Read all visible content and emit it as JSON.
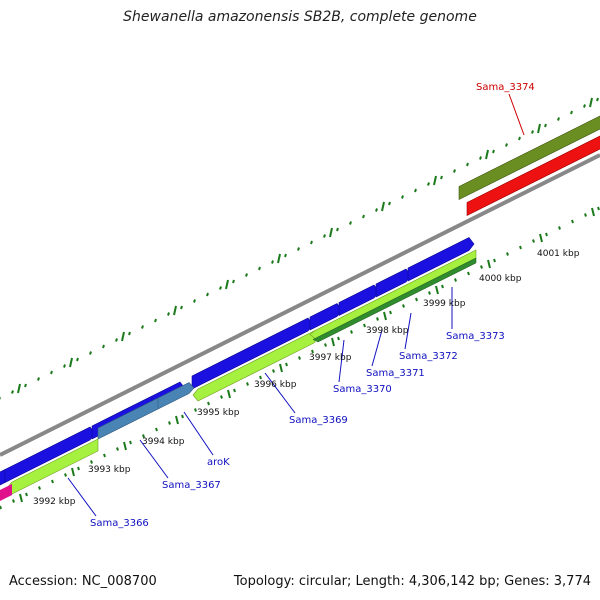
{
  "header": {
    "title": "Shewanella amazonensis SB2B, complete genome"
  },
  "footer": {
    "accession": "Accession: NC_008700",
    "summary": "Topology: circular; Length: 4,306,142 bp; Genes: 3,774"
  },
  "colors": {
    "forward_gene": "#1a10e0",
    "reverse_gene": "#a6f040",
    "reverse_gene_dark": "#2e8b2e",
    "steel_gene": "#4a84b4",
    "olive_gene": "#6b8e23",
    "red_gene": "#ee1111",
    "magenta_gene": "#e0108a",
    "backbone": "#888888",
    "tick": "#1a7a1a",
    "label_blue": "#1010c0",
    "label_red": "#cc0000"
  },
  "diagram": {
    "type": "linear-genome-map",
    "tick_labels": [
      "3992 kbp",
      "3993 kbp",
      "3994 kbp",
      "3995 kbp",
      "3996 kbp",
      "3997 kbp",
      "3998 kbp",
      "3999 kbp",
      "4000 kbp",
      "4001 kbp"
    ],
    "genes": [
      {
        "name": "Sama_3366",
        "color": "label_blue"
      },
      {
        "name": "Sama_3367",
        "color": "label_blue"
      },
      {
        "name": "aroK",
        "color": "label_blue"
      },
      {
        "name": "Sama_3369",
        "color": "label_blue"
      },
      {
        "name": "Sama_3370",
        "color": "label_blue"
      },
      {
        "name": "Sama_3371",
        "color": "label_blue"
      },
      {
        "name": "Sama_3372",
        "color": "label_blue"
      },
      {
        "name": "Sama_3373",
        "color": "label_blue"
      },
      {
        "name": "Sama_3374",
        "color": "label_red"
      }
    ]
  }
}
